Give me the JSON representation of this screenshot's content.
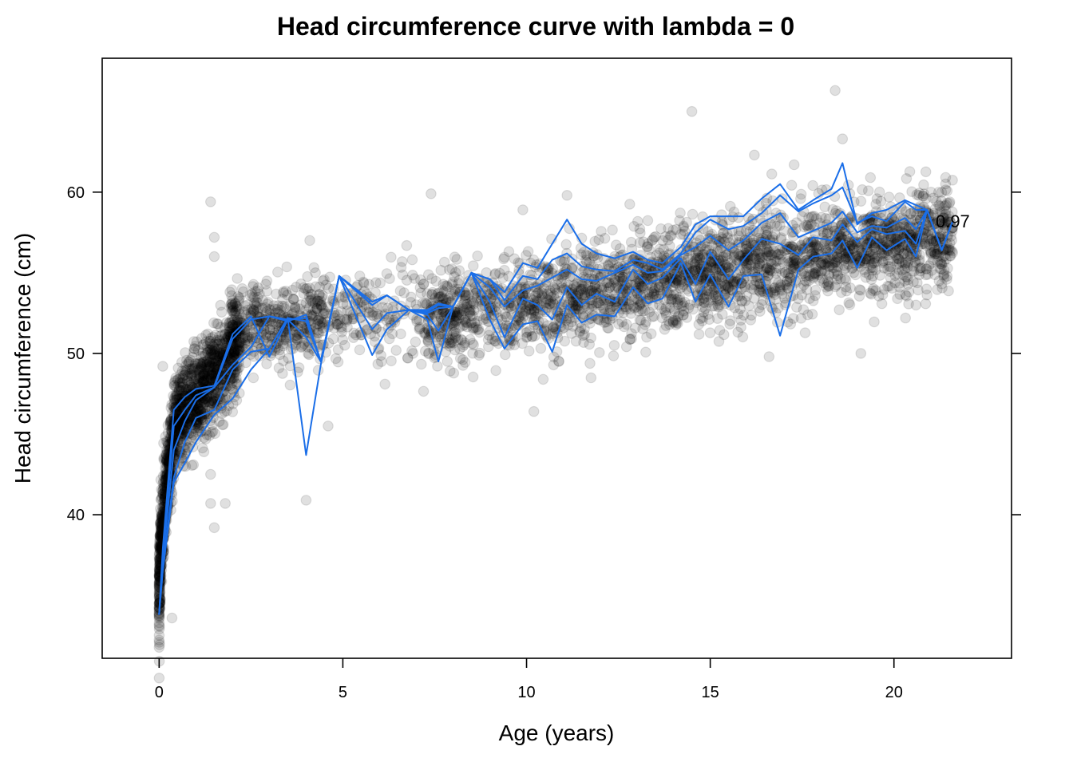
{
  "chart_data": {
    "type": "scatter",
    "title": "Head circumference curve with lambda = 0",
    "xlabel": "Age (years)",
    "ylabel": "Head circumference (cm)",
    "xlim": [
      -1.55,
      23.2
    ],
    "ylim": [
      31.1,
      68.3
    ],
    "x_ticks": [
      0,
      5,
      10,
      15,
      20
    ],
    "y_ticks": [
      40,
      50,
      60
    ],
    "grid": false,
    "colors": {
      "points": "#000000",
      "quantile_lines": "#1a6ee8"
    },
    "point_opacity": 0.12,
    "scatter_summary": "about 7000 individual observations drawn as semi-transparent grey circles; most dense below age 2 and between ages 8 and 21",
    "outlier_points": [
      {
        "x": 0.35,
        "y": 33.6
      },
      {
        "x": 0.1,
        "y": 49.2
      },
      {
        "x": 1.4,
        "y": 59.4
      },
      {
        "x": 1.5,
        "y": 57.2
      },
      {
        "x": 1.5,
        "y": 56.0
      },
      {
        "x": 1.5,
        "y": 39.2
      },
      {
        "x": 1.4,
        "y": 40.7
      },
      {
        "x": 1.8,
        "y": 40.7
      },
      {
        "x": 1.4,
        "y": 42.5
      },
      {
        "x": 4.1,
        "y": 57.0
      },
      {
        "x": 4.0,
        "y": 40.9
      },
      {
        "x": 4.6,
        "y": 45.5
      },
      {
        "x": 7.4,
        "y": 59.9
      },
      {
        "x": 10.2,
        "y": 46.4
      },
      {
        "x": 9.9,
        "y": 58.9
      },
      {
        "x": 11.1,
        "y": 59.8
      },
      {
        "x": 14.5,
        "y": 65.0
      },
      {
        "x": 16.2,
        "y": 62.3
      },
      {
        "x": 18.4,
        "y": 66.3
      },
      {
        "x": 18.6,
        "y": 63.3
      },
      {
        "x": 19.1,
        "y": 50.0
      },
      {
        "x": 16.6,
        "y": 49.8
      },
      {
        "x": 21.3,
        "y": 55.5
      },
      {
        "x": 20.6,
        "y": 53.0
      }
    ],
    "series": [
      {
        "values": [
          [
            0,
            33.8
          ],
          [
            0.1,
            36.5
          ],
          [
            0.4,
            42.0
          ],
          [
            0.7,
            43.2
          ],
          [
            1.0,
            44.5
          ],
          [
            1.5,
            46.2
          ],
          [
            2.0,
            47.2
          ],
          [
            2.5,
            49.0
          ],
          [
            3.0,
            50.3
          ],
          [
            3.5,
            52.2
          ],
          [
            4.0,
            43.7
          ],
          [
            4.4,
            49.3
          ],
          [
            4.9,
            54.8
          ],
          [
            5.8,
            49.9
          ],
          [
            6.2,
            51.5
          ],
          [
            6.8,
            52.7
          ],
          [
            7.3,
            52.1
          ],
          [
            7.6,
            49.5
          ],
          [
            8.0,
            52.9
          ],
          [
            8.5,
            55.0
          ],
          [
            9.0,
            52.1
          ],
          [
            9.4,
            50.3
          ],
          [
            9.9,
            51.8
          ],
          [
            10.3,
            52.0
          ],
          [
            10.7,
            50.1
          ],
          [
            11.1,
            53.0
          ],
          [
            11.5,
            51.9
          ],
          [
            11.9,
            52.4
          ],
          [
            12.4,
            52.3
          ],
          [
            12.9,
            54.1
          ],
          [
            13.3,
            53.1
          ],
          [
            13.7,
            53.4
          ],
          [
            14.2,
            55.6
          ],
          [
            14.6,
            53.2
          ],
          [
            15.0,
            54.9
          ],
          [
            15.5,
            52.9
          ],
          [
            15.9,
            54.8
          ],
          [
            16.4,
            54.9
          ],
          [
            16.9,
            51.1
          ],
          [
            17.4,
            55.2
          ],
          [
            17.8,
            56.0
          ],
          [
            18.3,
            56.2
          ],
          [
            18.6,
            57.0
          ],
          [
            19.0,
            55.3
          ],
          [
            19.4,
            57.2
          ],
          [
            19.8,
            56.4
          ],
          [
            20.3,
            57.1
          ],
          [
            20.6,
            56.0
          ],
          [
            20.9,
            58.9
          ],
          [
            21.3,
            56.4
          ],
          [
            21.6,
            58.2
          ]
        ]
      },
      {
        "values": [
          [
            0,
            33.8
          ],
          [
            0.1,
            36.8
          ],
          [
            0.4,
            42.3
          ],
          [
            0.7,
            44.5
          ],
          [
            1.0,
            46.0
          ],
          [
            1.5,
            46.5
          ],
          [
            2.0,
            49.0
          ],
          [
            2.5,
            50.1
          ],
          [
            3.0,
            50.3
          ],
          [
            3.5,
            52.2
          ],
          [
            4.0,
            52.0
          ],
          [
            4.4,
            49.5
          ],
          [
            4.9,
            54.8
          ],
          [
            5.8,
            51.5
          ],
          [
            6.2,
            52.5
          ],
          [
            6.8,
            52.7
          ],
          [
            7.3,
            52.4
          ],
          [
            7.6,
            51.4
          ],
          [
            8.0,
            52.9
          ],
          [
            8.5,
            55.0
          ],
          [
            9.0,
            53.2
          ],
          [
            9.4,
            51.0
          ],
          [
            9.9,
            53.4
          ],
          [
            10.3,
            53.0
          ],
          [
            10.7,
            52.1
          ],
          [
            11.1,
            54.1
          ],
          [
            11.5,
            53.0
          ],
          [
            11.9,
            53.7
          ],
          [
            12.4,
            53.2
          ],
          [
            12.9,
            55.2
          ],
          [
            13.3,
            54.3
          ],
          [
            13.7,
            54.7
          ],
          [
            14.2,
            55.9
          ],
          [
            14.6,
            54.3
          ],
          [
            15.0,
            56.3
          ],
          [
            15.5,
            54.6
          ],
          [
            15.9,
            55.8
          ],
          [
            16.4,
            57.1
          ],
          [
            16.9,
            56.8
          ],
          [
            17.4,
            56.1
          ],
          [
            17.8,
            57.2
          ],
          [
            18.3,
            57.0
          ],
          [
            18.6,
            58.0
          ],
          [
            19.0,
            56.9
          ],
          [
            19.4,
            57.7
          ],
          [
            19.8,
            57.4
          ],
          [
            20.3,
            57.6
          ],
          [
            20.6,
            56.8
          ],
          [
            20.9,
            58.9
          ],
          [
            21.3,
            56.4
          ],
          [
            21.6,
            58.2
          ]
        ]
      },
      {
        "values": [
          [
            0,
            33.8
          ],
          [
            0.1,
            37.2
          ],
          [
            0.4,
            44.0
          ],
          [
            0.7,
            45.8
          ],
          [
            1.0,
            47.1
          ],
          [
            1.5,
            47.9
          ],
          [
            2.0,
            49.3
          ],
          [
            2.5,
            50.4
          ],
          [
            3.0,
            52.3
          ],
          [
            3.5,
            52.0
          ],
          [
            4.0,
            52.4
          ],
          [
            4.4,
            49.5
          ],
          [
            4.9,
            54.8
          ],
          [
            5.8,
            53.0
          ],
          [
            6.2,
            53.6
          ],
          [
            6.8,
            52.7
          ],
          [
            7.3,
            52.5
          ],
          [
            7.6,
            52.8
          ],
          [
            8.0,
            52.9
          ],
          [
            8.5,
            55.0
          ],
          [
            9.0,
            54.1
          ],
          [
            9.4,
            52.9
          ],
          [
            9.9,
            53.9
          ],
          [
            10.3,
            54.2
          ],
          [
            10.7,
            54.7
          ],
          [
            11.1,
            55.2
          ],
          [
            11.5,
            54.6
          ],
          [
            11.9,
            54.5
          ],
          [
            12.4,
            55.0
          ],
          [
            12.9,
            55.5
          ],
          [
            13.3,
            55.0
          ],
          [
            13.7,
            55.1
          ],
          [
            14.2,
            56.1
          ],
          [
            14.6,
            56.6
          ],
          [
            15.0,
            57.3
          ],
          [
            15.5,
            56.4
          ],
          [
            15.9,
            57.0
          ],
          [
            16.4,
            58.1
          ],
          [
            16.9,
            58.7
          ],
          [
            17.4,
            57.2
          ],
          [
            17.8,
            57.6
          ],
          [
            18.3,
            58.1
          ],
          [
            18.6,
            58.8
          ],
          [
            19.0,
            57.5
          ],
          [
            19.4,
            57.9
          ],
          [
            19.8,
            57.8
          ],
          [
            20.3,
            58.4
          ],
          [
            20.6,
            57.7
          ],
          [
            20.9,
            58.9
          ],
          [
            21.3,
            56.4
          ],
          [
            21.6,
            58.2
          ]
        ]
      },
      {
        "values": [
          [
            0,
            33.8
          ],
          [
            0.1,
            37.5
          ],
          [
            0.4,
            45.5
          ],
          [
            0.7,
            46.5
          ],
          [
            1.0,
            47.4
          ],
          [
            1.5,
            47.9
          ],
          [
            2.0,
            50.9
          ],
          [
            2.5,
            52.1
          ],
          [
            3.0,
            52.3
          ],
          [
            3.5,
            52.1
          ],
          [
            4.0,
            51.0
          ],
          [
            4.4,
            49.5
          ],
          [
            4.9,
            54.8
          ],
          [
            5.8,
            53.2
          ],
          [
            6.2,
            53.6
          ],
          [
            6.8,
            52.7
          ],
          [
            7.3,
            52.6
          ],
          [
            7.6,
            53.0
          ],
          [
            8.0,
            52.9
          ],
          [
            8.5,
            55.0
          ],
          [
            9.0,
            54.6
          ],
          [
            9.4,
            53.3
          ],
          [
            9.9,
            54.8
          ],
          [
            10.3,
            54.6
          ],
          [
            10.7,
            55.8
          ],
          [
            11.1,
            56.2
          ],
          [
            11.5,
            55.4
          ],
          [
            11.9,
            55.2
          ],
          [
            12.4,
            55.1
          ],
          [
            12.9,
            55.8
          ],
          [
            13.3,
            55.6
          ],
          [
            13.7,
            55.2
          ],
          [
            14.2,
            56.2
          ],
          [
            14.6,
            57.5
          ],
          [
            15.0,
            58.3
          ],
          [
            15.5,
            57.7
          ],
          [
            15.9,
            57.9
          ],
          [
            16.4,
            58.7
          ],
          [
            16.9,
            59.8
          ],
          [
            17.4,
            58.8
          ],
          [
            17.8,
            59.3
          ],
          [
            18.3,
            59.8
          ],
          [
            18.6,
            60.3
          ],
          [
            19.0,
            58.1
          ],
          [
            19.4,
            58.5
          ],
          [
            19.8,
            58.2
          ],
          [
            20.3,
            59.4
          ],
          [
            20.6,
            58.9
          ],
          [
            20.9,
            58.9
          ],
          [
            21.3,
            56.4
          ],
          [
            21.6,
            58.2
          ]
        ]
      },
      {
        "values": [
          [
            0,
            33.8
          ],
          [
            0.1,
            37.9
          ],
          [
            0.4,
            46.5
          ],
          [
            0.7,
            47.3
          ],
          [
            1.0,
            47.8
          ],
          [
            1.5,
            48.0
          ],
          [
            2.0,
            51.2
          ],
          [
            2.5,
            52.3
          ],
          [
            3.0,
            49.8
          ],
          [
            3.5,
            52.1
          ],
          [
            4.0,
            52.2
          ],
          [
            4.4,
            49.5
          ],
          [
            4.9,
            54.8
          ],
          [
            5.8,
            53.2
          ],
          [
            6.2,
            53.6
          ],
          [
            6.8,
            52.7
          ],
          [
            7.3,
            52.7
          ],
          [
            7.6,
            53.1
          ],
          [
            8.0,
            52.9
          ],
          [
            8.5,
            55.0
          ],
          [
            9.0,
            54.6
          ],
          [
            9.4,
            53.8
          ],
          [
            9.9,
            55.6
          ],
          [
            10.3,
            55.3
          ],
          [
            10.7,
            56.8
          ],
          [
            11.1,
            58.3
          ],
          [
            11.5,
            56.8
          ],
          [
            11.9,
            56.2
          ],
          [
            12.4,
            55.9
          ],
          [
            12.9,
            56.3
          ],
          [
            13.3,
            55.8
          ],
          [
            13.7,
            55.6
          ],
          [
            14.2,
            56.6
          ],
          [
            14.6,
            58.0
          ],
          [
            15.0,
            58.5
          ],
          [
            15.5,
            58.5
          ],
          [
            15.9,
            58.5
          ],
          [
            16.4,
            59.6
          ],
          [
            16.9,
            60.5
          ],
          [
            17.4,
            58.9
          ],
          [
            17.8,
            59.5
          ],
          [
            18.3,
            60.2
          ],
          [
            18.6,
            61.8
          ],
          [
            19.0,
            58.0
          ],
          [
            19.4,
            58.7
          ],
          [
            19.8,
            58.9
          ],
          [
            20.3,
            59.5
          ],
          [
            20.6,
            59.2
          ],
          [
            20.9,
            58.9
          ],
          [
            21.3,
            56.4
          ],
          [
            21.6,
            58.2
          ]
        ]
      }
    ],
    "end_label": {
      "text": "0.97",
      "x": 21.7,
      "y": 58.2
    }
  }
}
